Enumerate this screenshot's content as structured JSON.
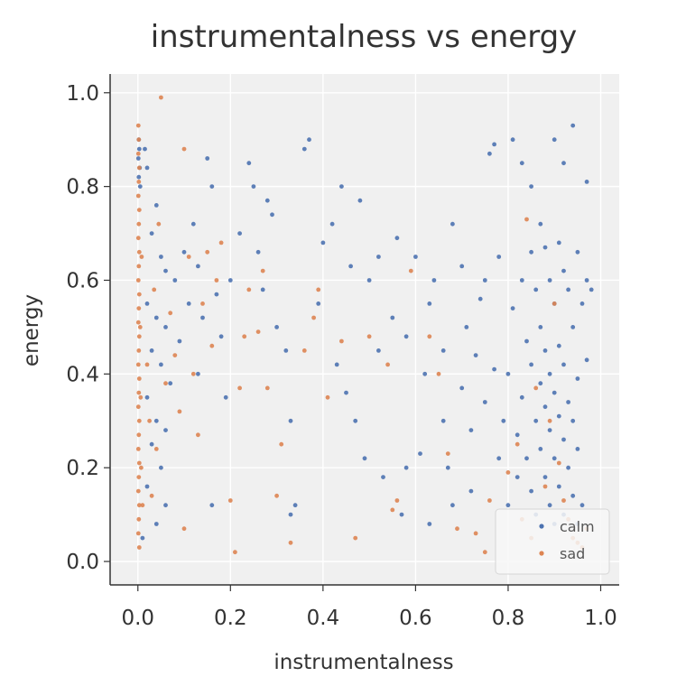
{
  "chart_data": {
    "type": "scatter",
    "title": "instrumentalness vs energy",
    "xlabel": "instrumentalness",
    "ylabel": "energy",
    "xlim": [
      -0.06,
      1.04
    ],
    "ylim": [
      -0.05,
      1.04
    ],
    "xticks": [
      "0.0",
      "0.2",
      "0.4",
      "0.6",
      "0.8",
      "1.0"
    ],
    "yticks": [
      "0.0",
      "0.2",
      "0.4",
      "0.6",
      "0.8",
      "1.0"
    ],
    "grid": true,
    "legend_position": "bottom-right",
    "series": [
      {
        "name": "calm",
        "color": "#4c72b0",
        "points": [
          [
            0.002,
            0.9
          ],
          [
            0.003,
            0.88
          ],
          [
            0.001,
            0.86
          ],
          [
            0.004,
            0.84
          ],
          [
            0.002,
            0.82
          ],
          [
            0.005,
            0.8
          ],
          [
            0.015,
            0.88
          ],
          [
            0.02,
            0.84
          ],
          [
            0.03,
            0.7
          ],
          [
            0.04,
            0.76
          ],
          [
            0.05,
            0.65
          ],
          [
            0.06,
            0.62
          ],
          [
            0.02,
            0.55
          ],
          [
            0.04,
            0.52
          ],
          [
            0.06,
            0.5
          ],
          [
            0.03,
            0.45
          ],
          [
            0.05,
            0.42
          ],
          [
            0.07,
            0.38
          ],
          [
            0.02,
            0.35
          ],
          [
            0.04,
            0.3
          ],
          [
            0.06,
            0.28
          ],
          [
            0.03,
            0.25
          ],
          [
            0.05,
            0.2
          ],
          [
            0.02,
            0.16
          ],
          [
            0.06,
            0.12
          ],
          [
            0.04,
            0.08
          ],
          [
            0.01,
            0.05
          ],
          [
            0.08,
            0.6
          ],
          [
            0.09,
            0.47
          ],
          [
            0.1,
            0.66
          ],
          [
            0.12,
            0.72
          ],
          [
            0.11,
            0.55
          ],
          [
            0.13,
            0.4
          ],
          [
            0.14,
            0.52
          ],
          [
            0.15,
            0.86
          ],
          [
            0.16,
            0.8
          ],
          [
            0.13,
            0.63
          ],
          [
            0.17,
            0.57
          ],
          [
            0.18,
            0.48
          ],
          [
            0.19,
            0.35
          ],
          [
            0.16,
            0.12
          ],
          [
            0.2,
            0.6
          ],
          [
            0.22,
            0.7
          ],
          [
            0.24,
            0.85
          ],
          [
            0.25,
            0.8
          ],
          [
            0.26,
            0.66
          ],
          [
            0.27,
            0.58
          ],
          [
            0.28,
            0.77
          ],
          [
            0.29,
            0.74
          ],
          [
            0.3,
            0.5
          ],
          [
            0.32,
            0.45
          ],
          [
            0.33,
            0.3
          ],
          [
            0.34,
            0.12
          ],
          [
            0.33,
            0.1
          ],
          [
            0.36,
            0.88
          ],
          [
            0.37,
            0.9
          ],
          [
            0.39,
            0.55
          ],
          [
            0.4,
            0.68
          ],
          [
            0.42,
            0.72
          ],
          [
            0.44,
            0.8
          ],
          [
            0.43,
            0.42
          ],
          [
            0.45,
            0.36
          ],
          [
            0.46,
            0.63
          ],
          [
            0.48,
            0.77
          ],
          [
            0.47,
            0.3
          ],
          [
            0.5,
            0.6
          ],
          [
            0.49,
            0.22
          ],
          [
            0.52,
            0.65
          ],
          [
            0.52,
            0.45
          ],
          [
            0.53,
            0.18
          ],
          [
            0.55,
            0.52
          ],
          [
            0.56,
            0.69
          ],
          [
            0.57,
            0.1
          ],
          [
            0.58,
            0.48
          ],
          [
            0.58,
            0.2
          ],
          [
            0.6,
            0.65
          ],
          [
            0.61,
            0.23
          ],
          [
            0.62,
            0.4
          ],
          [
            0.63,
            0.55
          ],
          [
            0.63,
            0.08
          ],
          [
            0.64,
            0.6
          ],
          [
            0.66,
            0.45
          ],
          [
            0.66,
            0.3
          ],
          [
            0.67,
            0.2
          ],
          [
            0.68,
            0.72
          ],
          [
            0.68,
            0.12
          ],
          [
            0.7,
            0.63
          ],
          [
            0.7,
            0.37
          ],
          [
            0.71,
            0.5
          ],
          [
            0.72,
            0.28
          ],
          [
            0.72,
            0.15
          ],
          [
            0.73,
            0.44
          ],
          [
            0.74,
            0.56
          ],
          [
            0.75,
            0.6
          ],
          [
            0.75,
            0.34
          ],
          [
            0.76,
            0.87
          ],
          [
            0.77,
            0.89
          ],
          [
            0.77,
            0.41
          ],
          [
            0.78,
            0.22
          ],
          [
            0.78,
            0.65
          ],
          [
            0.79,
            0.3
          ],
          [
            0.8,
            0.4
          ],
          [
            0.8,
            0.12
          ],
          [
            0.81,
            0.9
          ],
          [
            0.81,
            0.54
          ],
          [
            0.82,
            0.27
          ],
          [
            0.82,
            0.18
          ],
          [
            0.83,
            0.85
          ],
          [
            0.83,
            0.6
          ],
          [
            0.83,
            0.35
          ],
          [
            0.84,
            0.47
          ],
          [
            0.84,
            0.22
          ],
          [
            0.85,
            0.8
          ],
          [
            0.85,
            0.66
          ],
          [
            0.85,
            0.42
          ],
          [
            0.85,
            0.15
          ],
          [
            0.86,
            0.58
          ],
          [
            0.86,
            0.3
          ],
          [
            0.86,
            0.1
          ],
          [
            0.87,
            0.72
          ],
          [
            0.87,
            0.5
          ],
          [
            0.87,
            0.38
          ],
          [
            0.87,
            0.24
          ],
          [
            0.88,
            0.67
          ],
          [
            0.88,
            0.45
          ],
          [
            0.88,
            0.33
          ],
          [
            0.88,
            0.18
          ],
          [
            0.89,
            0.6
          ],
          [
            0.89,
            0.4
          ],
          [
            0.89,
            0.28
          ],
          [
            0.89,
            0.12
          ],
          [
            0.9,
            0.9
          ],
          [
            0.9,
            0.55
          ],
          [
            0.9,
            0.36
          ],
          [
            0.9,
            0.22
          ],
          [
            0.9,
            0.08
          ],
          [
            0.91,
            0.68
          ],
          [
            0.91,
            0.46
          ],
          [
            0.91,
            0.31
          ],
          [
            0.91,
            0.16
          ],
          [
            0.92,
            0.85
          ],
          [
            0.92,
            0.62
          ],
          [
            0.92,
            0.42
          ],
          [
            0.92,
            0.26
          ],
          [
            0.92,
            0.1
          ],
          [
            0.93,
            0.58
          ],
          [
            0.93,
            0.34
          ],
          [
            0.93,
            0.2
          ],
          [
            0.94,
            0.93
          ],
          [
            0.94,
            0.5
          ],
          [
            0.94,
            0.3
          ],
          [
            0.94,
            0.14
          ],
          [
            0.95,
            0.66
          ],
          [
            0.95,
            0.39
          ],
          [
            0.95,
            0.24
          ],
          [
            0.95,
            0.08
          ],
          [
            0.96,
            0.55
          ],
          [
            0.96,
            0.12
          ],
          [
            0.97,
            0.81
          ],
          [
            0.97,
            0.6
          ],
          [
            0.97,
            0.43
          ],
          [
            0.98,
            0.58
          ]
        ]
      },
      {
        "name": "sad",
        "color": "#dd8452",
        "points": [
          [
            0.001,
            0.93
          ],
          [
            0.002,
            0.9
          ],
          [
            0.001,
            0.87
          ],
          [
            0.003,
            0.84
          ],
          [
            0.002,
            0.81
          ],
          [
            0.001,
            0.78
          ],
          [
            0.003,
            0.75
          ],
          [
            0.002,
            0.72
          ],
          [
            0.001,
            0.69
          ],
          [
            0.003,
            0.66
          ],
          [
            0.002,
            0.63
          ],
          [
            0.001,
            0.6
          ],
          [
            0.003,
            0.57
          ],
          [
            0.002,
            0.54
          ],
          [
            0.001,
            0.51
          ],
          [
            0.003,
            0.48
          ],
          [
            0.002,
            0.45
          ],
          [
            0.001,
            0.42
          ],
          [
            0.003,
            0.39
          ],
          [
            0.002,
            0.36
          ],
          [
            0.001,
            0.33
          ],
          [
            0.003,
            0.3
          ],
          [
            0.002,
            0.27
          ],
          [
            0.001,
            0.24
          ],
          [
            0.003,
            0.21
          ],
          [
            0.002,
            0.18
          ],
          [
            0.001,
            0.15
          ],
          [
            0.003,
            0.12
          ],
          [
            0.002,
            0.09
          ],
          [
            0.001,
            0.06
          ],
          [
            0.003,
            0.03
          ],
          [
            0.005,
            0.5
          ],
          [
            0.006,
            0.35
          ],
          [
            0.007,
            0.2
          ],
          [
            0.008,
            0.65
          ],
          [
            0.01,
            0.12
          ],
          [
            0.02,
            0.42
          ],
          [
            0.025,
            0.3
          ],
          [
            0.03,
            0.14
          ],
          [
            0.035,
            0.58
          ],
          [
            0.04,
            0.24
          ],
          [
            0.045,
            0.72
          ],
          [
            0.05,
            0.99
          ],
          [
            0.06,
            0.38
          ],
          [
            0.07,
            0.53
          ],
          [
            0.08,
            0.44
          ],
          [
            0.09,
            0.32
          ],
          [
            0.1,
            0.88
          ],
          [
            0.1,
            0.07
          ],
          [
            0.11,
            0.65
          ],
          [
            0.12,
            0.4
          ],
          [
            0.13,
            0.27
          ],
          [
            0.14,
            0.55
          ],
          [
            0.15,
            0.66
          ],
          [
            0.16,
            0.46
          ],
          [
            0.17,
            0.6
          ],
          [
            0.18,
            0.68
          ],
          [
            0.2,
            0.13
          ],
          [
            0.21,
            0.02
          ],
          [
            0.22,
            0.37
          ],
          [
            0.23,
            0.48
          ],
          [
            0.24,
            0.58
          ],
          [
            0.26,
            0.49
          ],
          [
            0.27,
            0.62
          ],
          [
            0.28,
            0.37
          ],
          [
            0.3,
            0.14
          ],
          [
            0.31,
            0.25
          ],
          [
            0.33,
            0.04
          ],
          [
            0.36,
            0.45
          ],
          [
            0.38,
            0.52
          ],
          [
            0.39,
            0.58
          ],
          [
            0.41,
            0.35
          ],
          [
            0.44,
            0.47
          ],
          [
            0.47,
            0.05
          ],
          [
            0.5,
            0.48
          ],
          [
            0.54,
            0.42
          ],
          [
            0.55,
            0.11
          ],
          [
            0.56,
            0.13
          ],
          [
            0.59,
            0.62
          ],
          [
            0.63,
            0.48
          ],
          [
            0.65,
            0.4
          ],
          [
            0.67,
            0.23
          ],
          [
            0.69,
            0.07
          ],
          [
            0.73,
            0.06
          ],
          [
            0.75,
            0.02
          ],
          [
            0.76,
            0.13
          ],
          [
            0.8,
            0.19
          ],
          [
            0.82,
            0.25
          ],
          [
            0.83,
            0.09
          ],
          [
            0.84,
            0.73
          ],
          [
            0.85,
            0.05
          ],
          [
            0.86,
            0.37
          ],
          [
            0.88,
            0.16
          ],
          [
            0.89,
            0.3
          ],
          [
            0.9,
            0.55
          ],
          [
            0.91,
            0.21
          ],
          [
            0.92,
            0.13
          ],
          [
            0.93,
            0.09
          ],
          [
            0.94,
            0.05
          ],
          [
            0.95,
            0.04
          ],
          [
            0.96,
            0.03
          ],
          [
            0.97,
            0.07
          ]
        ]
      }
    ]
  }
}
